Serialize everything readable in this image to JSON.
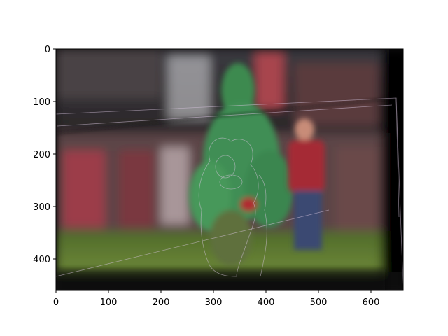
{
  "figure": {
    "image_description": "blurred stadium scene with a green mascot overlaid by a faint edge-detection outline on a darker tilted frame",
    "axes": {
      "x_ticks": [
        "0",
        "100",
        "200",
        "300",
        "400",
        "500",
        "600"
      ],
      "y_ticks": [
        "0",
        "100",
        "200",
        "300",
        "400"
      ]
    }
  },
  "colors": {
    "sky": "#2a2b33",
    "grass": "#5f7d2c",
    "mascot": "#3c8a52",
    "crowd_red": "#8a2b33",
    "frame_dark": "#0c0a0c"
  }
}
